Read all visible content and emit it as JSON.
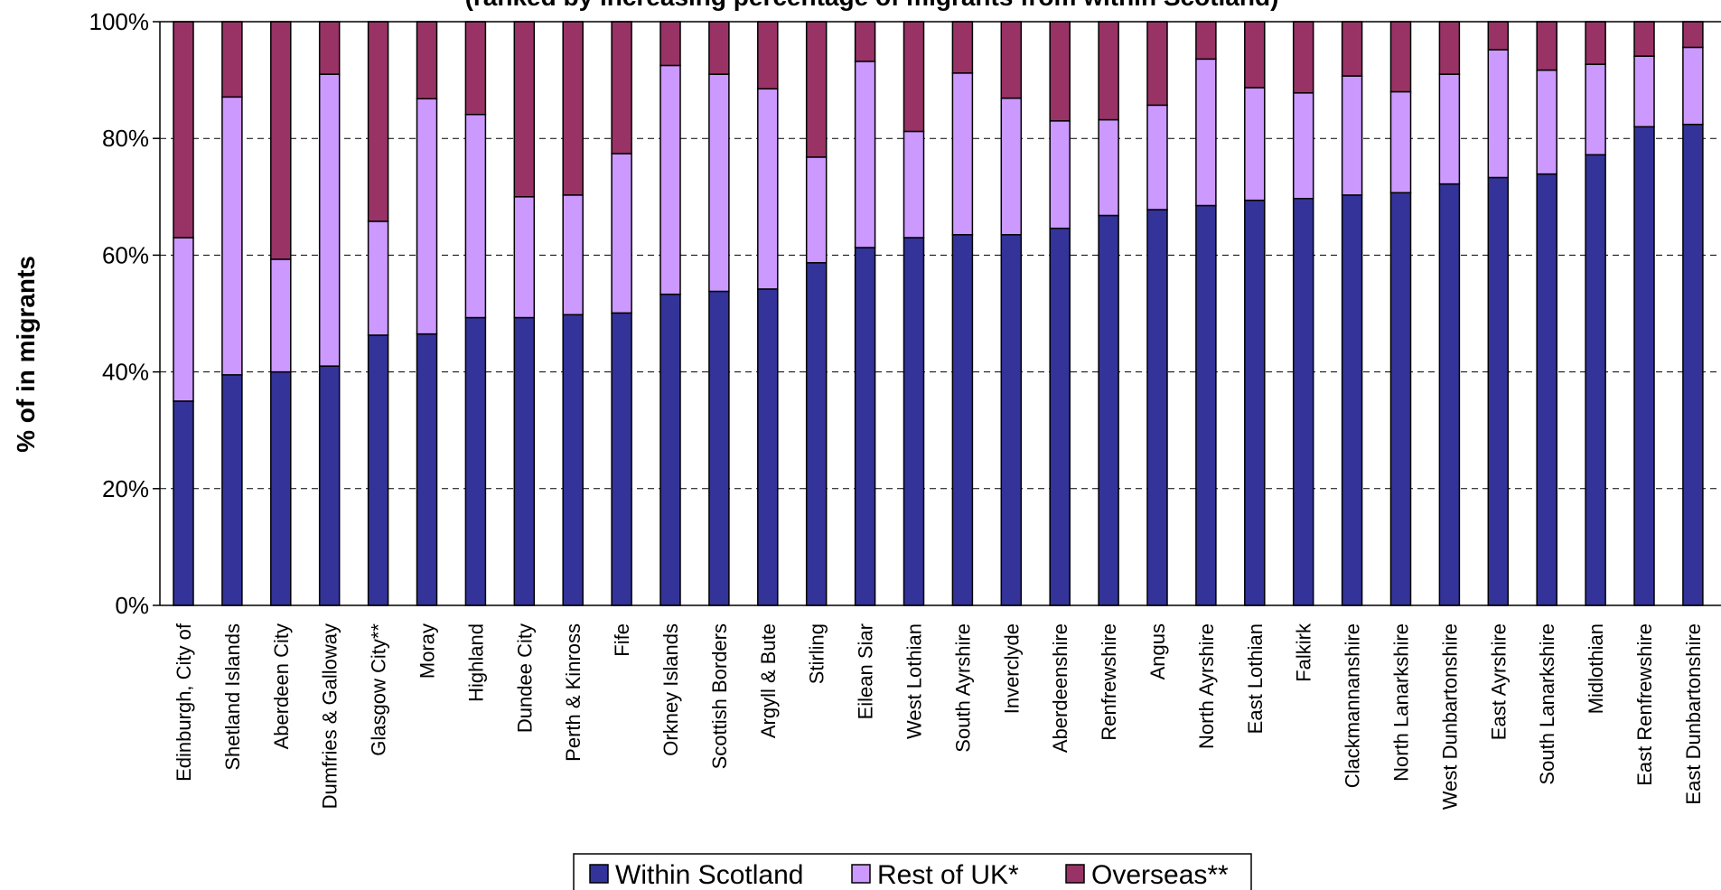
{
  "chart_data": {
    "type": "bar",
    "stacked": true,
    "subtitle": "(ranked by increasing percentage of migrants from within Scotland)",
    "ylabel": "% of in migrants",
    "ylim": [
      0,
      100
    ],
    "yticks": [
      "0%",
      "20%",
      "40%",
      "60%",
      "80%",
      "100%"
    ],
    "grid": true,
    "legend_position": "bottom",
    "categories": [
      "Edinburgh, City of",
      "Shetland Islands",
      "Aberdeen City",
      "Dumfries & Galloway",
      "Glasgow City**",
      "Moray",
      "Highland",
      "Dundee City",
      "Perth & Kinross",
      "Fife",
      "Orkney Islands",
      "Scottish Borders",
      "Argyll & Bute",
      "Stirling",
      "Eilean Siar",
      "West Lothian",
      "South Ayrshire",
      "Inverclyde",
      "Aberdeenshire",
      "Renfrewshire",
      "Angus",
      "North Ayrshire",
      "East Lothian",
      "Falkirk",
      "Clackmannanshire",
      "North Lanarkshire",
      "West Dunbartonshire",
      "East Ayrshire",
      "South Lanarkshire",
      "Midlothian",
      "East Renfrewshire",
      "East Dunbartonshire"
    ],
    "series": [
      {
        "name": "Within Scotland",
        "color": "#333399",
        "values": [
          35,
          39.5,
          40,
          41,
          46.3,
          46.5,
          49.3,
          49.3,
          49.8,
          50.1,
          53.3,
          53.8,
          54.2,
          58.7,
          61.3,
          63,
          63.5,
          63.5,
          64.6,
          66.8,
          67.8,
          68.5,
          69.4,
          69.7,
          70.3,
          70.7,
          72.2,
          73.3,
          73.9,
          77.2,
          82,
          82.4
        ]
      },
      {
        "name": "Rest of UK*",
        "color": "#CC99FF",
        "values": [
          28,
          47.6,
          19.3,
          50,
          19.5,
          40.3,
          34.8,
          20.7,
          20.5,
          27.3,
          39.2,
          37.2,
          34.3,
          18.1,
          31.9,
          18.2,
          27.7,
          23.4,
          18.4,
          16.4,
          17.9,
          25.1,
          19.3,
          18.1,
          20.4,
          17.3,
          18.8,
          21.9,
          17.8,
          15.5,
          12.1,
          13.2
        ]
      },
      {
        "name": "Overseas**",
        "color": "#993366",
        "values": [
          37,
          12.9,
          40.7,
          9,
          34.2,
          13.2,
          15.9,
          30,
          29.7,
          22.6,
          7.5,
          9,
          11.5,
          23.2,
          6.8,
          18.8,
          8.8,
          13.1,
          17,
          16.8,
          14.3,
          6.4,
          11.3,
          12.2,
          9.3,
          12,
          9,
          4.8,
          8.3,
          7.3,
          5.9,
          4.4
        ]
      }
    ]
  }
}
